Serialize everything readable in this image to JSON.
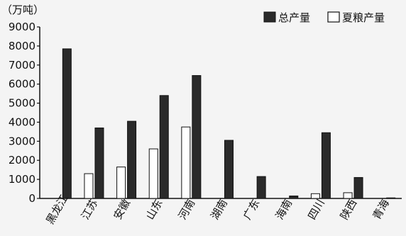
{
  "chart_data": {
    "type": "bar",
    "unit_label": "（万吨）",
    "categories": [
      "黑龙江",
      "江苏",
      "安徽",
      "山东",
      "河南",
      "湖南",
      "广东",
      "海南",
      "四川",
      "陕西",
      "青海"
    ],
    "series": [
      {
        "name": "总产量",
        "values": [
          7850,
          3700,
          4050,
          5400,
          6450,
          3050,
          1150,
          130,
          3450,
          1100,
          30
        ],
        "color": "#2a2a2a"
      },
      {
        "name": "夏粮产量",
        "values": [
          0,
          1300,
          1650,
          2600,
          3750,
          0,
          0,
          0,
          250,
          300,
          0
        ],
        "color": "#ffffff"
      }
    ],
    "y_ticks": [
      "0",
      "1000",
      "2000",
      "3000",
      "4000",
      "5000",
      "6000",
      "7000",
      "8000",
      "9000"
    ],
    "ylim": [
      0,
      9000
    ],
    "grid": false,
    "legend_position": "top-right"
  }
}
